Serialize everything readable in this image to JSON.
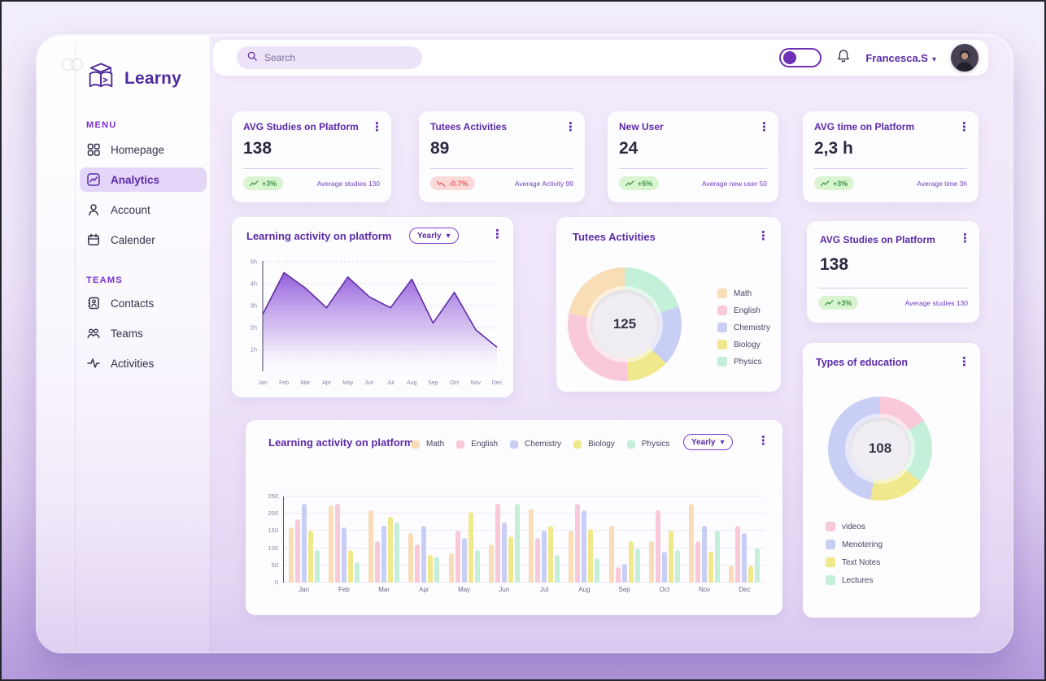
{
  "app": {
    "name": "Learny"
  },
  "topbar": {
    "search_placeholder": "Search",
    "username": "Francesca.S"
  },
  "sidebar": {
    "menu_label": "MENU",
    "menu_items": [
      {
        "label": "Homepage"
      },
      {
        "label": "Analytics"
      },
      {
        "label": "Account"
      },
      {
        "label": "Calender"
      }
    ],
    "teams_label": "TEAMS",
    "team_items": [
      {
        "label": "Contacts"
      },
      {
        "label": "Teams"
      },
      {
        "label": "Activities"
      }
    ]
  },
  "stat_cards": [
    {
      "title": "AVG Studies on Platform",
      "value": "138",
      "badge": "+3%",
      "trend": "up",
      "footnote": "Average studies 130"
    },
    {
      "title": "Tutees Activities",
      "value": "89",
      "badge": "-0.7%",
      "trend": "down",
      "footnote": "Average Activity 99"
    },
    {
      "title": "New User",
      "value": "24",
      "badge": "+5%",
      "trend": "up",
      "footnote": "Average new user 50"
    },
    {
      "title": "AVG time on Platform",
      "value": "2,3 h",
      "badge": "+3%",
      "trend": "up",
      "footnote": "Average time 3h"
    }
  ],
  "side_stat_card": {
    "title": "AVG Studies on Platform",
    "value": "138",
    "badge": "+3%",
    "trend": "up",
    "footnote": "Average studies 130"
  },
  "subject_colors": {
    "Math": "#f8ddb6",
    "English": "#f9c9da",
    "Chemistry": "#c9cef5",
    "Biology": "#f0e88c",
    "Physics": "#c4efd8",
    "videos": "#f9c9da",
    "Menotering": "#c9cef5",
    "Text Notes": "#f0e88c",
    "Lectures": "#c4efd8"
  },
  "chart_data": [
    {
      "id": "learning_area",
      "type": "area",
      "title": "Learning activity on platform",
      "period": "Yearly",
      "x": [
        "Jan",
        "Feb",
        "Mar",
        "Apr",
        "May",
        "Jun",
        "Jul",
        "Aug",
        "Sep",
        "Oct",
        "Nov",
        "Dec"
      ],
      "values_hours": [
        2.6,
        4.5,
        3.8,
        2.9,
        4.3,
        3.4,
        2.9,
        4.2,
        2.2,
        3.6,
        1.9,
        1.1
      ],
      "yticks": [
        "1h",
        "2h",
        "3h",
        "4h",
        "5h"
      ],
      "ylim": [
        0,
        5
      ],
      "grid": "dotted",
      "line_color": "#5e2ca5",
      "fill_top": "#8a4fd8"
    },
    {
      "id": "tutees_donut",
      "type": "pie",
      "title": "Tutees Activities",
      "center_value": "125",
      "legend": [
        "Math",
        "English",
        "Chemistry",
        "Biology",
        "Physics"
      ],
      "segments_clockwise_from_top": [
        {
          "label": "Physics",
          "pct": 20
        },
        {
          "label": "Chemistry",
          "pct": 17
        },
        {
          "label": "Biology",
          "pct": 12
        },
        {
          "label": "English",
          "pct": 29
        },
        {
          "label": "Math",
          "pct": 22
        }
      ]
    },
    {
      "id": "education_donut",
      "type": "pie",
      "title": "Types of education",
      "center_value": "108",
      "legend": [
        "videos",
        "Menotering",
        "Text Notes",
        "Lectures"
      ],
      "segments_clockwise_from_top": [
        {
          "label": "videos",
          "pct": 16
        },
        {
          "label": "Lectures",
          "pct": 20
        },
        {
          "label": "Text Notes",
          "pct": 17
        },
        {
          "label": "Menotering",
          "pct": 47
        }
      ]
    },
    {
      "id": "learning_bars",
      "type": "bar",
      "title": "Learning activity on platform",
      "period": "Yearly",
      "legend": [
        "Math",
        "English",
        "Chemistry",
        "Biology",
        "Physics"
      ],
      "x": [
        "Jan",
        "Feb",
        "Mar",
        "Apr",
        "May",
        "Jun",
        "Jul",
        "Aug",
        "Sep",
        "Oct",
        "Nov",
        "Dec"
      ],
      "yticks": [
        0,
        50,
        100,
        150,
        200,
        250
      ],
      "ylim": [
        0,
        250
      ],
      "series": [
        {
          "name": "Math",
          "values": [
            160,
            225,
            210,
            145,
            85,
            110,
            215,
            150,
            165,
            120,
            230,
            50
          ]
        },
        {
          "name": "English",
          "values": [
            185,
            230,
            120,
            110,
            150,
            230,
            130,
            230,
            45,
            210,
            120,
            165
          ]
        },
        {
          "name": "Chemistry",
          "values": [
            230,
            160,
            165,
            165,
            130,
            175,
            150,
            210,
            55,
            90,
            165,
            145
          ]
        },
        {
          "name": "Biology",
          "values": [
            150,
            95,
            190,
            80,
            205,
            135,
            165,
            155,
            120,
            150,
            90,
            50
          ]
        },
        {
          "name": "Physics",
          "values": [
            95,
            60,
            175,
            75,
            95,
            230,
            80,
            70,
            100,
            95,
            150,
            100
          ]
        }
      ]
    }
  ]
}
